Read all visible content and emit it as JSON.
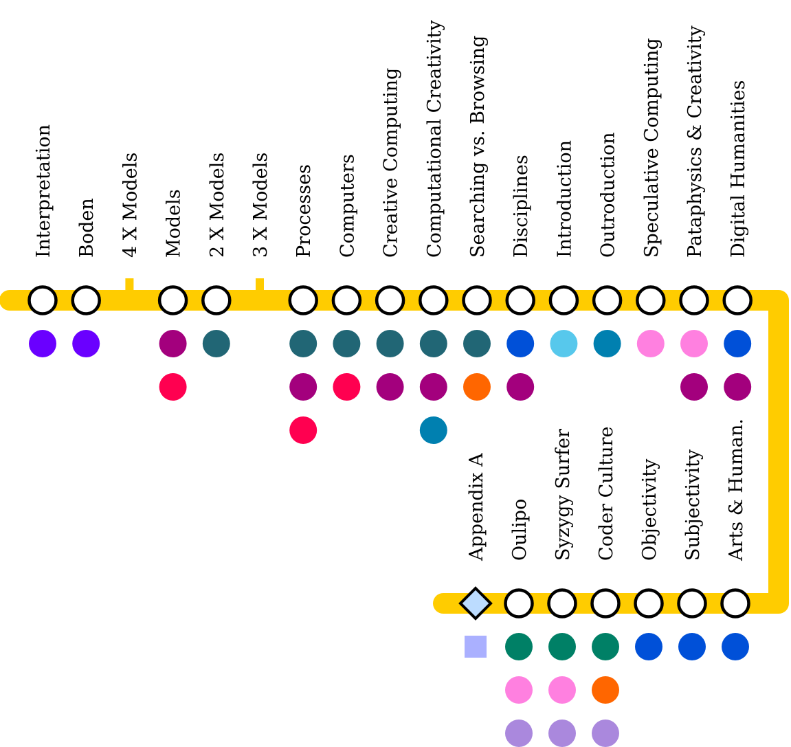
{
  "line_color": "#ffcc00",
  "top_row": [
    {
      "label": "Interpretation",
      "dots": [
        "#6a00ff"
      ]
    },
    {
      "label": "Boden",
      "dots": [
        "#6a00ff"
      ]
    },
    {
      "label": "4 X Models",
      "tick": true,
      "dots": []
    },
    {
      "label": "Models",
      "dots": [
        "#a3007d",
        "#ff0050"
      ]
    },
    {
      "label": "2 X Models",
      "dots": [
        "#216675"
      ]
    },
    {
      "label": "3 X Models",
      "tick": true,
      "dots": []
    },
    {
      "label": "Processes",
      "dots": [
        "#216675",
        "#a3007d",
        "#ff0050"
      ]
    },
    {
      "label": "Computers",
      "dots": [
        "#216675",
        "#ff0050"
      ]
    },
    {
      "label": "Creative Computing",
      "dots": [
        "#216675",
        "#a3007d"
      ]
    },
    {
      "label": "Computational Creativity",
      "dots": [
        "#216675",
        "#a3007d",
        "#0080b0"
      ]
    },
    {
      "label": "Searching vs. Browsing",
      "dots": [
        "#216675",
        "#ff6600"
      ]
    },
    {
      "label": "Disciplines",
      "dots": [
        "#0050d8",
        "#a3007d"
      ]
    },
    {
      "label": "Introduction",
      "dots": [
        "#57c8ec"
      ]
    },
    {
      "label": "Outroduction",
      "dots": [
        "#0080b0"
      ]
    },
    {
      "label": "Speculative Computing",
      "dots": [
        "#ff80e0"
      ]
    },
    {
      "label": "Pataphysics & Creativity",
      "dots": [
        "#ff80e0",
        "#a3007d"
      ]
    },
    {
      "label": "Digital Humanities",
      "dots": [
        "#0050d8",
        "#a3007d"
      ]
    }
  ],
  "bottom_row": [
    {
      "label": "Appendix A",
      "diamond": true,
      "square": "#aab0ff",
      "dots": []
    },
    {
      "label": "Oulipo",
      "dots": [
        "#008066",
        "#ff80e0",
        "#aa88dd"
      ]
    },
    {
      "label": "Syzygy Surfer",
      "dots": [
        "#008066",
        "#ff80e0",
        "#aa88dd"
      ]
    },
    {
      "label": "Coder Culture",
      "dots": [
        "#008066",
        "#ff6600",
        "#aa88dd"
      ]
    },
    {
      "label": "Objectivity",
      "dots": [
        "#0050d8"
      ]
    },
    {
      "label": "Subjectivity",
      "dots": [
        "#0050d8"
      ]
    },
    {
      "label": "Arts & Human.",
      "dots": [
        "#0050d8"
      ]
    }
  ]
}
